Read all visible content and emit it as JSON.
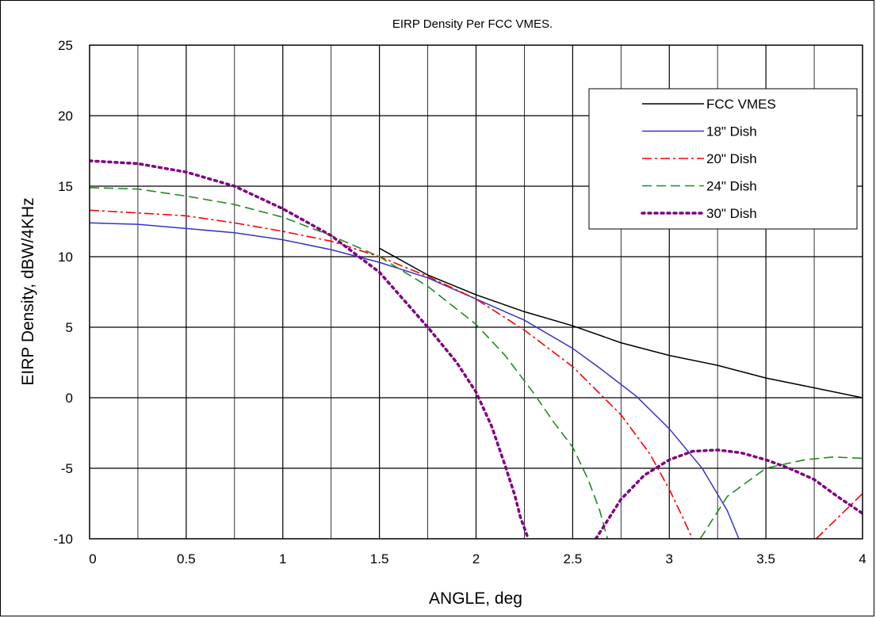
{
  "chart_data": {
    "type": "line",
    "title": "EIRP Density Per FCC VMES.",
    "xlabel": "ANGLE, deg",
    "ylabel": "EIRP Density, dBW/4KHz",
    "xlim": [
      0,
      4
    ],
    "ylim": [
      -10,
      25
    ],
    "x_ticks": [
      "0",
      "0.5",
      "1",
      "1.5",
      "2",
      "2.5",
      "3",
      "3.5",
      "4"
    ],
    "y_ticks": [
      "-10",
      "-5",
      "0",
      "5",
      "10",
      "15",
      "20",
      "25"
    ],
    "grid": true,
    "legend_position": "top-right",
    "series": [
      {
        "name": "FCC VMES",
        "color": "#000000",
        "dash": "solid",
        "x": [
          1.5,
          1.75,
          2.0,
          2.25,
          2.5,
          2.75,
          3.0,
          3.25,
          3.5,
          3.75,
          4.0
        ],
        "y": [
          10.6,
          8.7,
          7.3,
          6.1,
          5.1,
          3.9,
          3.0,
          2.3,
          1.4,
          0.7,
          0.0
        ]
      },
      {
        "name": "18\" Dish",
        "color": "#3333cc",
        "dash": "solid",
        "x": [
          0,
          0.25,
          0.5,
          0.75,
          1.0,
          1.25,
          1.5,
          1.75,
          2.0,
          2.25,
          2.5,
          2.65,
          2.83,
          3.0,
          3.17,
          3.3,
          3.36
        ],
        "y": [
          12.4,
          12.3,
          12.0,
          11.7,
          11.2,
          10.5,
          9.6,
          8.5,
          7.0,
          5.5,
          3.5,
          2.0,
          0.1,
          -2.2,
          -5.0,
          -8.0,
          -10.0
        ]
      },
      {
        "name": "20\" Dish",
        "color": "#ff0000",
        "dash": "dashdot",
        "x": [
          0,
          0.25,
          0.5,
          0.75,
          1.0,
          1.25,
          1.5,
          1.75,
          2.0,
          2.25,
          2.5,
          2.75,
          2.9,
          3.0,
          3.07,
          3.12
        ],
        "y": [
          13.3,
          13.1,
          12.9,
          12.4,
          11.8,
          11.1,
          10.0,
          8.6,
          7.0,
          4.8,
          2.2,
          -1.2,
          -4.0,
          -6.5,
          -8.5,
          -10.0
        ],
        "x2": [
          3.76,
          3.88,
          4.0
        ],
        "y2": [
          -10.0,
          -8.4,
          -6.8
        ]
      },
      {
        "name": "24\" Dish",
        "color": "#228b22",
        "dash": "dash",
        "x": [
          0,
          0.25,
          0.5,
          0.75,
          1.0,
          1.25,
          1.5,
          1.75,
          2.0,
          2.15,
          2.3,
          2.4,
          2.5,
          2.58,
          2.64,
          2.68
        ],
        "y": [
          14.9,
          14.8,
          14.3,
          13.7,
          12.8,
          11.5,
          10.0,
          7.9,
          5.2,
          3.0,
          0.3,
          -1.7,
          -3.5,
          -5.8,
          -8.0,
          -10.0
        ],
        "x2": [
          3.16,
          3.3,
          3.5,
          3.7,
          3.85,
          4.0
        ],
        "y2": [
          -10.0,
          -7.0,
          -5.0,
          -4.4,
          -4.2,
          -4.3
        ]
      },
      {
        "name": "30\" Dish",
        "color": "#800080",
        "dash": "dot",
        "x": [
          0,
          0.25,
          0.5,
          0.75,
          1.0,
          1.25,
          1.5,
          1.75,
          1.9,
          2.0,
          2.08,
          2.15,
          2.2,
          2.23,
          2.27
        ],
        "y": [
          16.8,
          16.6,
          16.0,
          15.0,
          13.4,
          11.5,
          8.9,
          5.0,
          2.5,
          0.4,
          -2.0,
          -4.8,
          -6.9,
          -8.5,
          -10.0
        ],
        "x2": [
          2.62,
          2.75,
          2.87,
          3.0,
          3.12,
          3.25,
          3.37,
          3.5,
          3.62,
          3.75,
          3.87,
          4.0
        ],
        "y2": [
          -10.0,
          -7.2,
          -5.5,
          -4.4,
          -3.8,
          -3.7,
          -3.9,
          -4.4,
          -5.0,
          -5.8,
          -7.0,
          -8.2
        ]
      }
    ]
  }
}
